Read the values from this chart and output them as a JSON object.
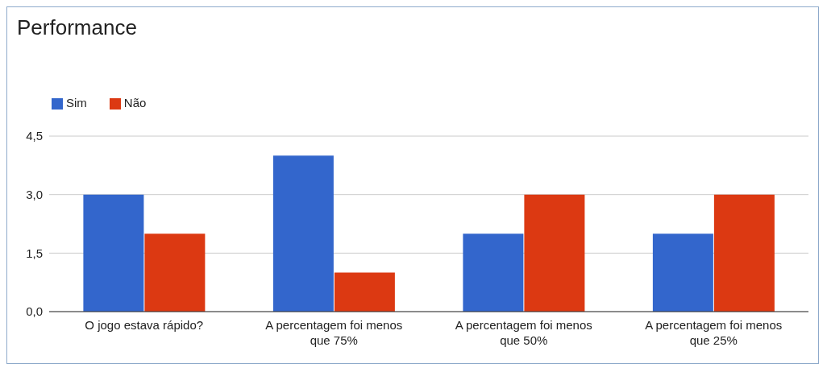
{
  "chart_data": {
    "type": "bar",
    "title": "Performance",
    "categories": [
      "O jogo estava rápido?",
      "A percentagem foi menos que 75%",
      "A percentagem foi menos que 50%",
      "A percentagem foi menos que 25%"
    ],
    "series": [
      {
        "name": "Sim",
        "color": "#3366cc",
        "values": [
          3,
          4,
          2,
          2
        ]
      },
      {
        "name": "Não",
        "color": "#dc3912",
        "values": [
          2,
          1,
          3,
          3
        ]
      }
    ],
    "ylim": [
      0,
      4.5
    ],
    "yticks": [
      {
        "value": 0,
        "label": "0,0"
      },
      {
        "value": 1.5,
        "label": "1,5"
      },
      {
        "value": 3,
        "label": "3,0"
      },
      {
        "value": 4.5,
        "label": "4,5"
      }
    ],
    "grid": "y",
    "legend": "top left"
  }
}
